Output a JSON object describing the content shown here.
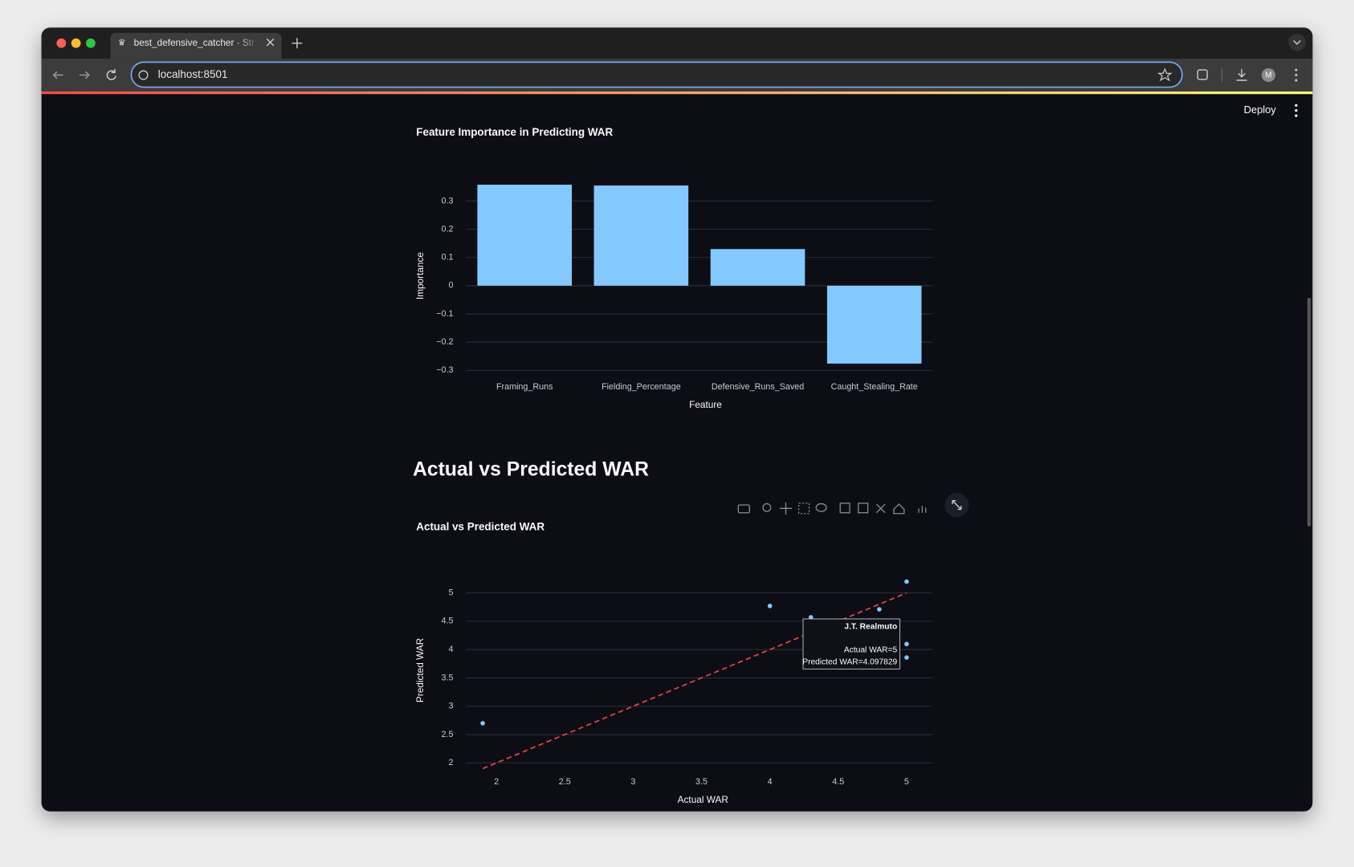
{
  "browser": {
    "tab_title": "best_defensive_catcher · Str",
    "url": "localhost:8501",
    "profile": "M"
  },
  "app": {
    "deploy": "Deploy",
    "heading": "Actual vs Predicted WAR"
  },
  "chart_data": [
    {
      "type": "bar",
      "title": "Feature Importance in Predicting WAR",
      "x_label": "Feature",
      "y_label": "Importance",
      "categories": [
        "Framing_Runs",
        "Fielding_Percentage",
        "Defensive_Runs_Saved",
        "Caught_Stealing_Rate"
      ],
      "values": [
        0.358,
        0.355,
        0.13,
        -0.276
      ],
      "color": "#83c9ff",
      "ylim": [
        -0.32,
        0.39
      ],
      "yticks": [
        {
          "value": -0.3,
          "label": "−0.3"
        },
        {
          "value": -0.2,
          "label": "−0.2"
        },
        {
          "value": -0.1,
          "label": "−0.1"
        },
        0,
        0.1,
        0.2,
        0.3
      ],
      "grid": true
    },
    {
      "type": "scatter",
      "title": "Actual vs Predicted WAR",
      "x_label": "Actual WAR",
      "y_label": "Predicted WAR",
      "x": [
        1.9,
        4.0,
        4.3,
        4.8,
        5,
        5,
        5
      ],
      "values": [
        2.7,
        4.77,
        4.57,
        4.71,
        5.2,
        4.097829,
        3.86
      ],
      "color": "#83c9ff",
      "xlim": [
        1.78,
        5.19
      ],
      "ylim": [
        1.86,
        5.41
      ],
      "xticks": [
        2,
        2.5,
        3,
        3.5,
        4,
        4.5,
        5
      ],
      "yticks": [
        2,
        2.5,
        3,
        3.5,
        4,
        4.5,
        5
      ],
      "line": {
        "x": [
          1.9,
          5
        ],
        "y": [
          1.9,
          5
        ],
        "color": "#e8453c"
      },
      "grid": true,
      "tooltip": {
        "name": "J.T. Realmuto",
        "lines": [
          "Actual WAR=5",
          "Predicted WAR=4.097829"
        ]
      }
    }
  ]
}
